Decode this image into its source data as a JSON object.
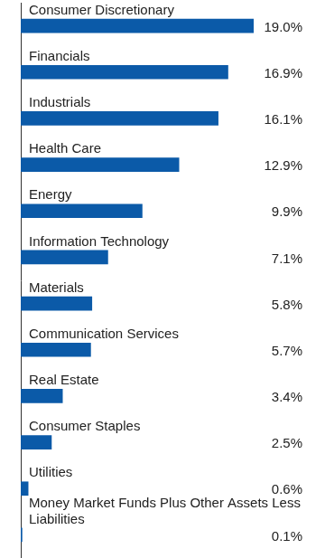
{
  "chart_data": {
    "type": "bar",
    "orientation": "horizontal",
    "categories": [
      "Consumer Discretionary",
      "Financials",
      "Industrials",
      "Health Care",
      "Energy",
      "Information Technology",
      "Materials",
      "Communication Services",
      "Real Estate",
      "Consumer Staples",
      "Utilities",
      "Money Market Funds Plus Other Assets Less Liabilities"
    ],
    "values": [
      19.0,
      16.9,
      16.1,
      12.9,
      9.9,
      7.1,
      5.8,
      5.7,
      3.4,
      2.5,
      0.6,
      0.1
    ],
    "value_labels": [
      "19.0%",
      "16.9%",
      "16.1%",
      "12.9%",
      "9.9%",
      "7.1%",
      "5.8%",
      "5.7%",
      "3.4%",
      "2.5%",
      "0.6%",
      "0.1%"
    ],
    "color": "#0b5aa8",
    "xlim": [
      0,
      19
    ],
    "grid": false,
    "tick_labels": false,
    "data_labels": true
  }
}
